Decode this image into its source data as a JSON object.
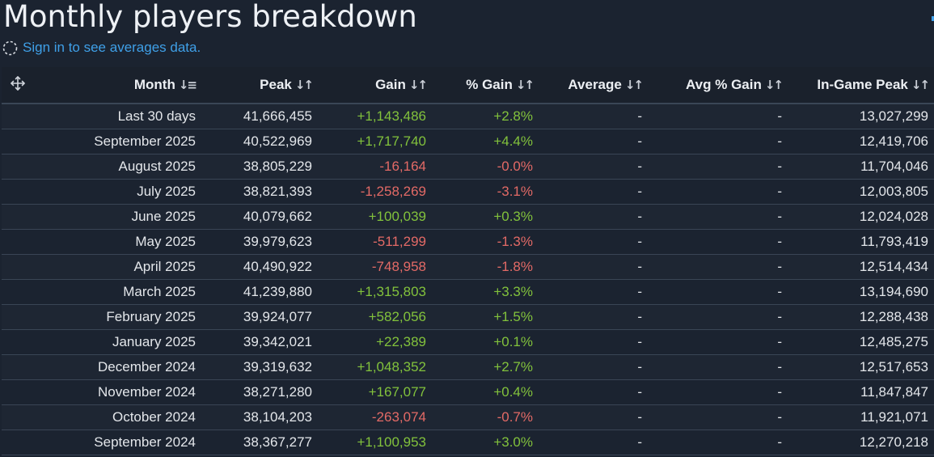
{
  "page": {
    "title": "Monthly players breakdown",
    "signin_text": "Sign in to see averages data."
  },
  "colors": {
    "background": "#1b2330",
    "link": "#3fa0e8",
    "positive": "#82c23c",
    "negative": "#e36a66"
  },
  "icons": {
    "signin": "loading-circle-icon",
    "handle": "move-arrows-icon",
    "sort": "sort-arrows-icon"
  },
  "table": {
    "columns": [
      {
        "key": "month",
        "label": "Month"
      },
      {
        "key": "peak",
        "label": "Peak"
      },
      {
        "key": "gain",
        "label": "Gain"
      },
      {
        "key": "pct_gain",
        "label": "% Gain"
      },
      {
        "key": "average",
        "label": "Average"
      },
      {
        "key": "avg_pct_gain",
        "label": "Avg % Gain"
      },
      {
        "key": "ingame_peak",
        "label": "In-Game Peak"
      }
    ],
    "rows": [
      {
        "month": "Last 30 days",
        "peak": "41,666,455",
        "gain": "+1,143,486",
        "pct_gain": "+2.8%",
        "average": "-",
        "avg_pct_gain": "-",
        "ingame_peak": "13,027,299"
      },
      {
        "month": "September 2025",
        "peak": "40,522,969",
        "gain": "+1,717,740",
        "pct_gain": "+4.4%",
        "average": "-",
        "avg_pct_gain": "-",
        "ingame_peak": "12,419,706"
      },
      {
        "month": "August 2025",
        "peak": "38,805,229",
        "gain": "-16,164",
        "pct_gain": "-0.0%",
        "average": "-",
        "avg_pct_gain": "-",
        "ingame_peak": "11,704,046"
      },
      {
        "month": "July 2025",
        "peak": "38,821,393",
        "gain": "-1,258,269",
        "pct_gain": "-3.1%",
        "average": "-",
        "avg_pct_gain": "-",
        "ingame_peak": "12,003,805"
      },
      {
        "month": "June 2025",
        "peak": "40,079,662",
        "gain": "+100,039",
        "pct_gain": "+0.3%",
        "average": "-",
        "avg_pct_gain": "-",
        "ingame_peak": "12,024,028"
      },
      {
        "month": "May 2025",
        "peak": "39,979,623",
        "gain": "-511,299",
        "pct_gain": "-1.3%",
        "average": "-",
        "avg_pct_gain": "-",
        "ingame_peak": "11,793,419"
      },
      {
        "month": "April 2025",
        "peak": "40,490,922",
        "gain": "-748,958",
        "pct_gain": "-1.8%",
        "average": "-",
        "avg_pct_gain": "-",
        "ingame_peak": "12,514,434"
      },
      {
        "month": "March 2025",
        "peak": "41,239,880",
        "gain": "+1,315,803",
        "pct_gain": "+3.3%",
        "average": "-",
        "avg_pct_gain": "-",
        "ingame_peak": "13,194,690"
      },
      {
        "month": "February 2025",
        "peak": "39,924,077",
        "gain": "+582,056",
        "pct_gain": "+1.5%",
        "average": "-",
        "avg_pct_gain": "-",
        "ingame_peak": "12,288,438"
      },
      {
        "month": "January 2025",
        "peak": "39,342,021",
        "gain": "+22,389",
        "pct_gain": "+0.1%",
        "average": "-",
        "avg_pct_gain": "-",
        "ingame_peak": "12,485,275"
      },
      {
        "month": "December 2024",
        "peak": "39,319,632",
        "gain": "+1,048,352",
        "pct_gain": "+2.7%",
        "average": "-",
        "avg_pct_gain": "-",
        "ingame_peak": "12,517,653"
      },
      {
        "month": "November 2024",
        "peak": "38,271,280",
        "gain": "+167,077",
        "pct_gain": "+0.4%",
        "average": "-",
        "avg_pct_gain": "-",
        "ingame_peak": "11,847,847"
      },
      {
        "month": "October 2024",
        "peak": "38,104,203",
        "gain": "-263,074",
        "pct_gain": "-0.7%",
        "average": "-",
        "avg_pct_gain": "-",
        "ingame_peak": "11,921,071"
      },
      {
        "month": "September 2024",
        "peak": "38,367,277",
        "gain": "+1,100,953",
        "pct_gain": "+3.0%",
        "average": "-",
        "avg_pct_gain": "-",
        "ingame_peak": "12,270,218"
      }
    ]
  }
}
